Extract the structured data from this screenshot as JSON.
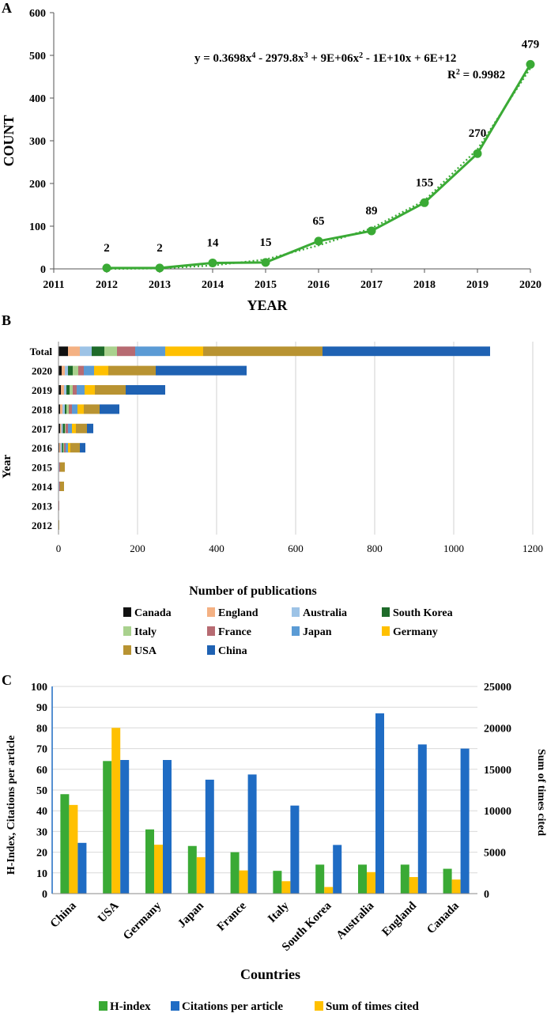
{
  "chart_data": [
    {
      "panel": "A",
      "type": "line",
      "panel_label": "A",
      "xlabel": "YEAR",
      "ylabel": "COUNT",
      "x": [
        2012,
        2013,
        2014,
        2015,
        2016,
        2017,
        2018,
        2019,
        2020
      ],
      "values": [
        2,
        2,
        14,
        15,
        65,
        89,
        155,
        270,
        479
      ],
      "data_labels": [
        "2",
        "2",
        "14",
        "15",
        "65",
        "89",
        "155",
        "270",
        "479"
      ],
      "xticks": [
        "2011",
        "2012",
        "2013",
        "2014",
        "2015",
        "2016",
        "2017",
        "2018",
        "2019",
        "2020"
      ],
      "yticks": [
        "0",
        "100",
        "200",
        "300",
        "400",
        "500",
        "600"
      ],
      "xlim": [
        2011,
        2020
      ],
      "ylim": [
        0,
        600
      ],
      "trendline": {
        "type": "polynomial order 4 (dotted)",
        "equation_prefix": "y = 0.3698x",
        "equation_parts": [
          "4",
          " - 2979.8x",
          "3",
          " + 9E+06x",
          "2",
          " - 1E+10x + 6E+12"
        ],
        "r2_prefix": "R",
        "r2_sup": "2",
        "r2_suffix": " = 0.9982",
        "fitted_values": [
          0,
          1,
          8,
          22,
          55,
          95,
          160,
          280,
          470
        ]
      },
      "colors": {
        "line": "#3aaa35"
      }
    },
    {
      "panel": "B",
      "type": "bar",
      "orientation": "horizontal",
      "stacked": true,
      "panel_label": "B",
      "xlabel": "Number of publications",
      "ylabel": "Year",
      "categories": [
        "Total",
        "2020",
        "2019",
        "2018",
        "2017",
        "2016",
        "2015",
        "2014",
        "2013",
        "2012"
      ],
      "xticks": [
        "0",
        "200",
        "400",
        "600",
        "800",
        "1000",
        "1200"
      ],
      "xlim": [
        0,
        1200
      ],
      "series": [
        {
          "name": "Canada",
          "color": "#111111",
          "values": [
            24,
            8,
            6,
            4,
            4,
            2,
            0,
            0,
            0,
            0
          ]
        },
        {
          "name": "England",
          "color": "#f4b183",
          "values": [
            30,
            8,
            8,
            6,
            3,
            3,
            1,
            1,
            0,
            0
          ]
        },
        {
          "name": "Australia",
          "color": "#9dc3e6",
          "values": [
            30,
            8,
            6,
            6,
            4,
            4,
            1,
            1,
            0,
            0
          ]
        },
        {
          "name": "South Korea",
          "color": "#1e6b2a",
          "values": [
            32,
            12,
            8,
            4,
            5,
            3,
            0,
            0,
            0,
            0
          ]
        },
        {
          "name": "Italy",
          "color": "#a9d18e",
          "values": [
            32,
            14,
            8,
            6,
            2,
            2,
            0,
            0,
            0,
            0
          ]
        },
        {
          "name": "France",
          "color": "#b76b72",
          "values": [
            46,
            14,
            10,
            8,
            6,
            4,
            2,
            2,
            2,
            0
          ]
        },
        {
          "name": "Japan",
          "color": "#5b9bd5",
          "values": [
            76,
            26,
            20,
            14,
            10,
            6,
            0,
            0,
            0,
            0
          ]
        },
        {
          "name": "Germany",
          "color": "#ffc000",
          "values": [
            96,
            36,
            26,
            16,
            10,
            6,
            0,
            0,
            0,
            0
          ]
        },
        {
          "name": "USA",
          "color": "#b89332",
          "values": [
            302,
            120,
            78,
            40,
            28,
            24,
            12,
            10,
            0,
            2
          ]
        },
        {
          "name": "China",
          "color": "#1f62b3",
          "values": [
            424,
            230,
            100,
            50,
            16,
            14,
            0,
            0,
            0,
            0
          ]
        }
      ]
    },
    {
      "panel": "C",
      "type": "bar",
      "orientation": "vertical",
      "panel_label": "C",
      "xlabel": "Countries",
      "ylabel_left": "H-Index, Citations per article",
      "ylabel_right": "Sum of times cited",
      "categories": [
        "China",
        "USA",
        "Germany",
        "Japan",
        "France",
        "Italy",
        "South Korea",
        "Australia",
        "England",
        "Canada"
      ],
      "yticks_left": [
        "0",
        "10",
        "20",
        "30",
        "40",
        "50",
        "60",
        "70",
        "80",
        "90",
        "100"
      ],
      "yticks_right": [
        "0",
        "5000",
        "10000",
        "15000",
        "20000",
        "25000"
      ],
      "ylim_left": [
        0,
        100
      ],
      "ylim_right": [
        0,
        25000
      ],
      "series": [
        {
          "name": "H-index",
          "color": "#3aaa35",
          "axis": "left",
          "values": [
            48,
            64,
            31,
            23,
            20,
            11,
            14,
            14,
            14,
            12
          ]
        },
        {
          "name": "Sum of times cited",
          "color": "#ffc000",
          "axis": "right",
          "values": [
            10700,
            20000,
            5900,
            4400,
            2800,
            1500,
            800,
            2600,
            2000,
            1700
          ]
        },
        {
          "name": "Citations per article",
          "color": "#1f6cc4",
          "axis": "left",
          "values": [
            24.5,
            64.5,
            64.5,
            55,
            57.5,
            42.5,
            23.5,
            87,
            72,
            70
          ]
        }
      ],
      "legend_order": [
        "H-index",
        "Citations per article",
        "Sum of times cited"
      ]
    }
  ]
}
